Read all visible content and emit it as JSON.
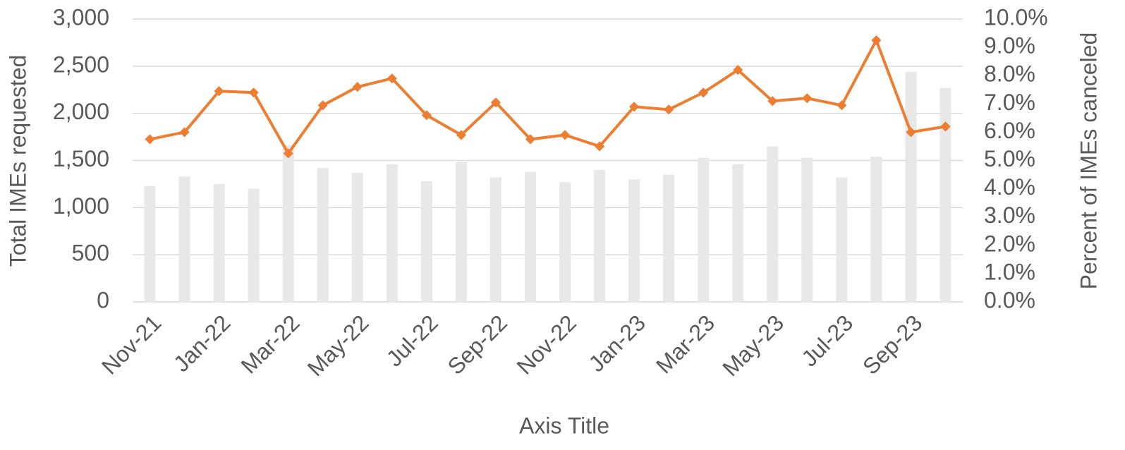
{
  "chart_data": {
    "type": "bar",
    "xlabel": "Axis Title",
    "ylabel": "Total IMEs requested",
    "y2label": "Percent of IMEs canceled",
    "categories": [
      "Nov-21",
      null,
      "Jan-22",
      null,
      "Mar-22",
      null,
      "May-22",
      null,
      "Jul-22",
      null,
      "Sep-22",
      null,
      "Nov-22",
      null,
      "Jan-23",
      null,
      "Mar-23",
      null,
      "May-23",
      null,
      "Jul-23",
      null,
      "Sep-23",
      null
    ],
    "series": [
      {
        "type": "bar",
        "color": "#e8e8e8",
        "values": [
          1230,
          1330,
          1250,
          1200,
          1660,
          1420,
          1370,
          1460,
          1280,
          1480,
          1320,
          1380,
          1270,
          1400,
          1300,
          1350,
          1530,
          1460,
          1650,
          1530,
          1320,
          1540,
          2440,
          2270
        ]
      },
      {
        "type": "line",
        "axis": "y2",
        "color": "#ed7d31",
        "values": [
          5.75,
          6.0,
          7.45,
          7.4,
          5.25,
          6.95,
          7.6,
          7.9,
          6.6,
          5.9,
          7.05,
          5.75,
          5.9,
          5.5,
          6.9,
          6.8,
          7.4,
          8.2,
          7.1,
          7.2,
          6.95,
          9.25,
          6.0,
          6.2
        ]
      }
    ],
    "ylim": [
      0,
      3000
    ],
    "yticks": [
      0,
      500,
      {
        "value": 1000,
        "label": "1,000"
      },
      {
        "value": 1500,
        "label": "1,500"
      },
      {
        "value": 2000,
        "label": "2,000"
      },
      {
        "value": 2500,
        "label": "2,500"
      },
      {
        "value": 3000,
        "label": "3,000"
      }
    ],
    "y2lim": [
      0,
      10
    ],
    "y2ticks": [
      {
        "value": 0,
        "label": "0.0%"
      },
      {
        "value": 1,
        "label": "1.0%"
      },
      {
        "value": 2,
        "label": "2.0%"
      },
      {
        "value": 3,
        "label": "3.0%"
      },
      {
        "value": 4,
        "label": "4.0%"
      },
      {
        "value": 5,
        "label": "5.0%"
      },
      {
        "value": 6,
        "label": "6.0%"
      },
      {
        "value": 7,
        "label": "7.0%"
      },
      {
        "value": 8,
        "label": "8.0%"
      },
      {
        "value": 9,
        "label": "9.0%"
      },
      {
        "value": 10,
        "label": "10.0%"
      }
    ],
    "grid": true
  }
}
